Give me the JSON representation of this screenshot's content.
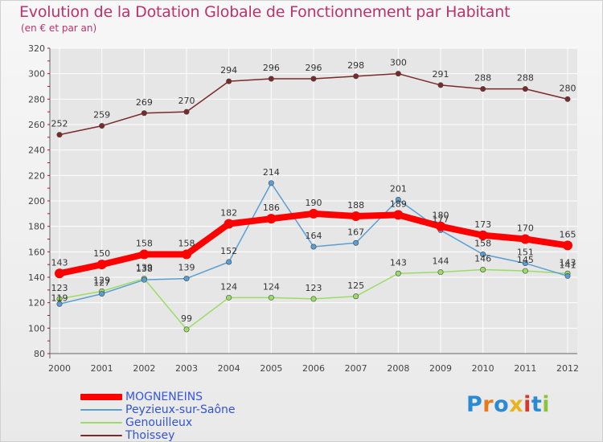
{
  "chart_data": {
    "type": "line",
    "title": "Evolution de la Dotation Globale de Fonctionnement par Habitant",
    "subtitle": "(en € et par an)",
    "x": [
      "2000",
      "2001",
      "2002",
      "2003",
      "2004",
      "2005",
      "2006",
      "2007",
      "2008",
      "2009",
      "2010",
      "2011",
      "2012"
    ],
    "y_ticks": [
      80,
      100,
      120,
      140,
      160,
      180,
      200,
      220,
      240,
      260,
      280,
      300,
      320
    ],
    "ylim": [
      80,
      320
    ],
    "grid": true,
    "legend_position": "bottom-left",
    "series": [
      {
        "name": "MOGNENEINS",
        "color": "#ff0000",
        "label_color": "#333333",
        "values": [
          143,
          150,
          158,
          158,
          182,
          186,
          190,
          188,
          189,
          180,
          173,
          170,
          165
        ],
        "labels": [
          "143",
          "150",
          "158",
          "158",
          "182",
          "186",
          "190",
          "188",
          "189",
          "180",
          "173",
          "170",
          "165"
        ]
      },
      {
        "name": "Peyzieux-sur-Saône",
        "color": "#5a9fd4",
        "label_color": "#333333",
        "values": [
          119,
          127,
          138,
          139,
          152,
          214,
          164,
          167,
          201,
          177,
          158,
          151,
          141
        ],
        "labels": [
          "119",
          "127",
          "138",
          "139",
          "152",
          "214",
          "164",
          "167",
          "201",
          "177",
          "158",
          "151",
          "141"
        ]
      },
      {
        "name": "Genouilleux",
        "color": "#99dd66",
        "label_color": "#333333",
        "values": [
          123,
          129,
          139,
          99,
          124,
          124,
          123,
          125,
          143,
          144,
          146,
          145,
          143
        ],
        "labels": [
          "123",
          "129",
          "139",
          "99",
          "124",
          "124",
          "123",
          "125",
          "143",
          "144",
          "146",
          "145",
          "143"
        ]
      },
      {
        "name": "Thoissey",
        "color": "#7a2a2a",
        "label_color": "#333333",
        "values": [
          252,
          259,
          269,
          270,
          294,
          296,
          296,
          298,
          300,
          291,
          288,
          288,
          280
        ],
        "labels": [
          "252",
          "259",
          "269",
          "270",
          "294",
          "296",
          "296",
          "298",
          "300",
          "291",
          "288",
          "288",
          "280"
        ]
      }
    ]
  },
  "logo": {
    "letters": [
      "P",
      "r",
      "o",
      "x",
      "i",
      "t",
      "i"
    ],
    "colors": [
      "#2a8ad4",
      "#e87a1e",
      "#2a8ad4",
      "#e8b31e",
      "#d43a2a",
      "#2a8ad4",
      "#8ac43a"
    ]
  },
  "colors": {
    "title": "#c0306a",
    "axis": "#444444",
    "grid": "#ffffff"
  }
}
